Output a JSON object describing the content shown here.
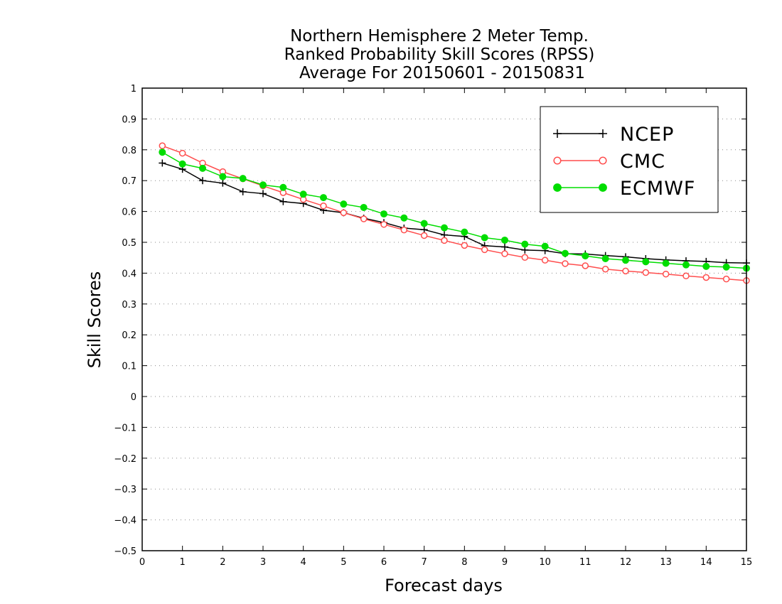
{
  "chart_data": {
    "type": "line",
    "title_lines": [
      "Northern Hemisphere 2 Meter Temp.",
      "Ranked Probability Skill Scores (RPSS)",
      "Average For 20150601 - 20150831"
    ],
    "xlabel": "Forecast days",
    "ylabel": "Skill Scores",
    "xlim": [
      0,
      15
    ],
    "ylim": [
      -0.5,
      1
    ],
    "x_ticks": [
      0,
      1,
      2,
      3,
      4,
      5,
      6,
      7,
      8,
      9,
      10,
      11,
      12,
      13,
      14,
      15
    ],
    "y_ticks": [
      -0.5,
      -0.4,
      -0.3,
      -0.2,
      -0.1,
      0,
      0.1,
      0.2,
      0.3,
      0.4,
      0.5,
      0.6,
      0.7,
      0.8,
      0.9,
      1
    ],
    "y_tick_labels": [
      "−0.5",
      "−0.4",
      "−0.3",
      "−0.2",
      "−0.1",
      "0",
      "0.1",
      "0.2",
      "0.3",
      "0.4",
      "0.5",
      "0.6",
      "0.7",
      "0.8",
      "0.9",
      "1"
    ],
    "grid": "horizontal dotted",
    "legend_position": "top-right",
    "x": [
      0.5,
      1,
      1.5,
      2,
      2.5,
      3,
      3.5,
      4,
      4.5,
      5,
      5.5,
      6,
      6.5,
      7,
      7.5,
      8,
      8.5,
      9,
      9.5,
      10,
      10.5,
      11,
      11.5,
      12,
      12.5,
      13,
      13.5,
      14,
      14.5,
      15
    ],
    "series": [
      {
        "name": "NCEP",
        "color": "#000000",
        "marker": "plus",
        "values": [
          0.757,
          0.737,
          0.7,
          0.692,
          0.664,
          0.658,
          0.632,
          0.626,
          0.604,
          0.596,
          0.578,
          0.564,
          0.546,
          0.541,
          0.524,
          0.519,
          0.489,
          0.485,
          0.475,
          0.473,
          0.463,
          0.462,
          0.457,
          0.453,
          0.447,
          0.443,
          0.44,
          0.438,
          0.434,
          0.433
        ]
      },
      {
        "name": "CMC",
        "color": "#ff4d4d",
        "marker": "open-circle",
        "values": [
          0.813,
          0.789,
          0.757,
          0.729,
          0.706,
          0.683,
          0.661,
          0.639,
          0.618,
          0.596,
          0.576,
          0.558,
          0.54,
          0.522,
          0.506,
          0.49,
          0.476,
          0.463,
          0.451,
          0.442,
          0.431,
          0.424,
          0.413,
          0.407,
          0.402,
          0.397,
          0.391,
          0.386,
          0.381,
          0.376
        ]
      },
      {
        "name": "ECMWF",
        "color": "#00dd00",
        "marker": "filled-circle",
        "values": [
          0.792,
          0.754,
          0.74,
          0.713,
          0.707,
          0.686,
          0.678,
          0.656,
          0.645,
          0.624,
          0.613,
          0.592,
          0.579,
          0.561,
          0.547,
          0.533,
          0.515,
          0.507,
          0.494,
          0.487,
          0.464,
          0.456,
          0.447,
          0.442,
          0.437,
          0.432,
          0.427,
          0.422,
          0.42,
          0.416
        ]
      }
    ]
  }
}
